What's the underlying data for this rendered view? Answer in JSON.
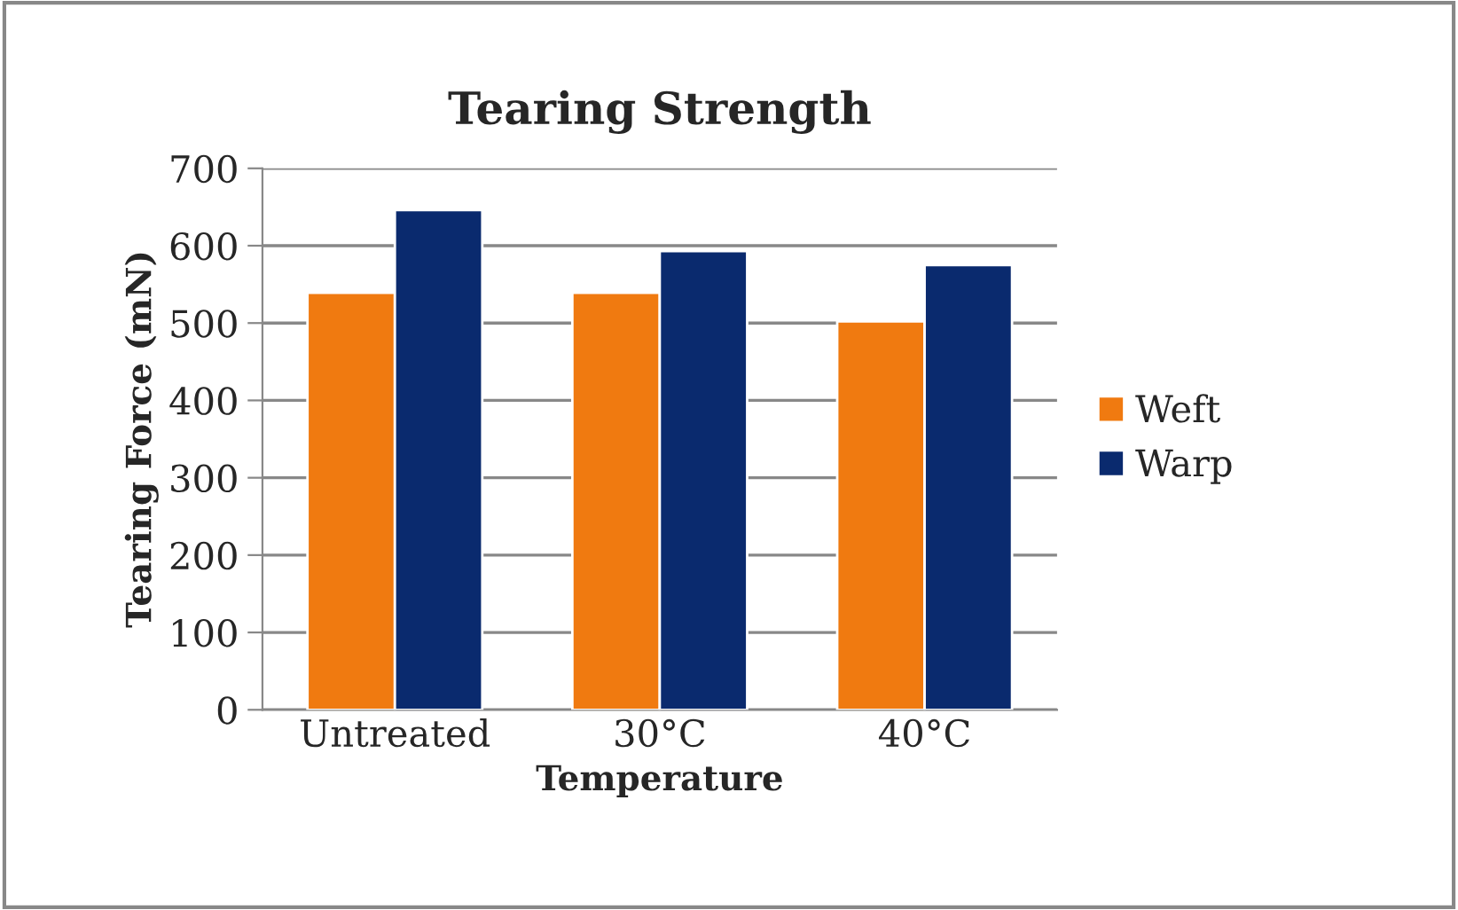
{
  "chart_data": {
    "type": "bar",
    "title": "Tearing Strength",
    "xlabel": "Temperature",
    "ylabel": "Tearing Force (mN)",
    "categories": [
      "Untreated",
      "30°C",
      "40°C"
    ],
    "series": [
      {
        "name": "Weft",
        "color": "#f07a10",
        "values": [
          539,
          539,
          502
        ]
      },
      {
        "name": "Warp",
        "color": "#0a2a6e",
        "values": [
          646,
          593,
          575
        ]
      }
    ],
    "ylim": [
      0,
      700
    ],
    "yticks": [
      0,
      100,
      200,
      300,
      400,
      500,
      600,
      700
    ],
    "grid": "y",
    "legend": "right"
  }
}
